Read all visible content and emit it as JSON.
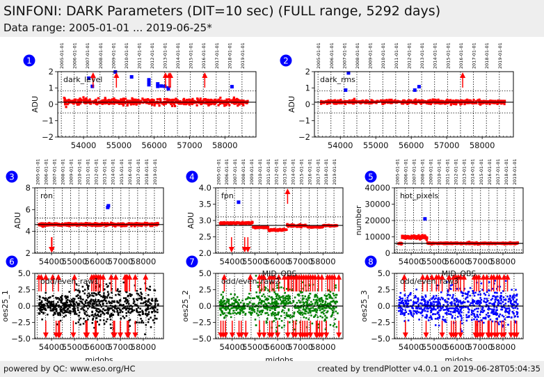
{
  "header": {
    "title": "SINFONI: DARK Parameters (DIT=10 sec) (FULL range, 5292 days)",
    "subtitle": "Data range: 2005-01-01 ... 2019-06-25*"
  },
  "footer": {
    "left": "powered by QC: www.eso.org/HC",
    "right": "created by trendPlotter v4.0.1 on 2019-06-28T05:04:35"
  },
  "colors": {
    "badge": "#0000ff",
    "red": "#ff0000",
    "blue": "#0000ff",
    "black": "#000000",
    "green": "#008000",
    "header_bg": "#eeeeee"
  },
  "chart_data": [
    {
      "id": 1,
      "type": "scatter",
      "badge": "1",
      "label": "dark_level",
      "ylabel": "ADU",
      "xlabel": "",
      "ylim": [
        -2,
        2
      ],
      "yticks": [
        "2",
        "1",
        "0",
        "−1",
        "−2"
      ],
      "ytick_values": [
        2,
        1,
        0,
        -1,
        -2
      ],
      "xlim": [
        53270,
        58880
      ],
      "xticks": [
        "54000",
        "55000",
        "56000",
        "57000",
        "58000"
      ],
      "xtick_values": [
        54000,
        55000,
        56000,
        57000,
        58000
      ],
      "date_labels": [
        "2005-01-01",
        "2006-01-01",
        "2007-01-01",
        "2008-01-01",
        "2009-01-01",
        "2010-01-01",
        "2011-01-01",
        "2012-01-01",
        "2013-01-01",
        "2014-01-01",
        "2015-01-01",
        "2016-01-01",
        "2017-01-01",
        "2018-01-01",
        "2019-01-01"
      ],
      "median": 0.13,
      "thresholds": [
        0.82,
        -0.52
      ],
      "point_color": "red",
      "band": {
        "center": 0.15,
        "spread": 0.15
      },
      "outliers_blue": [
        [
          54250,
          1.1
        ],
        [
          54150,
          1.6
        ],
        [
          54900,
          1.98
        ],
        [
          55360,
          1.68
        ],
        [
          55850,
          1.5
        ],
        [
          55850,
          1.35
        ],
        [
          55850,
          1.2
        ],
        [
          56100,
          1.25
        ],
        [
          56100,
          1.1
        ],
        [
          56200,
          1.12
        ],
        [
          56300,
          1.1
        ],
        [
          56400,
          1.0
        ],
        [
          56400,
          0.95
        ],
        [
          58200,
          1.08
        ]
      ],
      "arrows_up": [
        54270,
        54930,
        56320,
        56420,
        56460,
        57430
      ]
    },
    {
      "id": 2,
      "type": "scatter",
      "badge": "2",
      "label": "dark_rms",
      "ylabel": "ADU",
      "xlabel": "",
      "ylim": [
        -2,
        2
      ],
      "yticks": [
        "2",
        "1",
        "0",
        "−1",
        "−2"
      ],
      "ytick_values": [
        2,
        1,
        0,
        -1,
        -2
      ],
      "xlim": [
        53270,
        58880
      ],
      "xticks": [
        "54000",
        "55000",
        "56000",
        "57000",
        "58000"
      ],
      "xtick_values": [
        54000,
        55000,
        56000,
        57000,
        58000
      ],
      "date_labels": [
        "2005-01-01",
        "2006-01-01",
        "2007-01-01",
        "2008-01-01",
        "2009-01-01",
        "2010-01-01",
        "2011-01-01",
        "2012-01-01",
        "2013-01-01",
        "2014-01-01",
        "2015-01-01",
        "2016-01-01",
        "2017-01-01",
        "2018-01-01",
        "2019-01-01"
      ],
      "median": 0.13,
      "thresholds": [
        0.82,
        -0.52
      ],
      "point_color": "red",
      "band": {
        "center": 0.14,
        "spread": 0.1
      },
      "outliers_blue": [
        [
          54150,
          0.87
        ],
        [
          54230,
          1.92
        ],
        [
          56100,
          0.87
        ],
        [
          56220,
          1.08
        ]
      ],
      "arrows_up": [
        57450
      ]
    },
    {
      "id": 3,
      "type": "scatter",
      "badge": "3",
      "label": "ron",
      "ylabel": "ADU",
      "xlabel": "",
      "ylim": [
        2,
        8
      ],
      "yticks": [
        "8",
        "6",
        "4",
        "2"
      ],
      "ytick_values": [
        8,
        6,
        4,
        2
      ],
      "xlim": [
        53270,
        58880
      ],
      "xticks": [
        "54000",
        "55000",
        "56000",
        "57000",
        "58000"
      ],
      "xtick_values": [
        54000,
        55000,
        56000,
        57000,
        58000
      ],
      "date_labels": [
        "2005-01-01",
        "2006-01-01",
        "2007-01-01",
        "2008-01-01",
        "2009-01-01",
        "2010-01-01",
        "2011-01-01",
        "2012-01-01",
        "2013-01-01",
        "2014-01-01",
        "2015-01-01",
        "2016-01-01",
        "2017-01-01",
        "2018-01-01",
        "2019-01-01"
      ],
      "median": 4.63,
      "thresholds": [
        5.22,
        4.0
      ],
      "point_color": "red",
      "band": {
        "center": 4.63,
        "spread": 0.1
      },
      "outliers_blue": [
        [
          56450,
          6.2
        ],
        [
          56480,
          6.35
        ]
      ],
      "arrows_down": [
        54000,
        54020
      ]
    },
    {
      "id": 4,
      "type": "scatter",
      "badge": "4",
      "label": "fpn",
      "ylabel": "ADU",
      "xlabel": "",
      "ylim": [
        2.0,
        4.0
      ],
      "yticks": [
        "4.0",
        "3.5",
        "3.0",
        "2.5",
        "2.0"
      ],
      "ytick_values": [
        4.0,
        3.5,
        3.0,
        2.5,
        2.0
      ],
      "xlim": [
        53270,
        58880
      ],
      "xticks": [
        "54000",
        "55000",
        "56000",
        "57000",
        "58000"
      ],
      "xtick_values": [
        54000,
        55000,
        56000,
        57000,
        58000
      ],
      "date_labels": [
        "2005-01-01",
        "2006-01-01",
        "2007-01-01",
        "2008-01-01",
        "2009-01-01",
        "2010-01-01",
        "2011-01-01",
        "2012-01-01",
        "2013-01-01",
        "2014-01-01",
        "2015-01-01",
        "2016-01-01",
        "2017-01-01",
        "2018-01-01",
        "2019-01-01"
      ],
      "median": 2.85,
      "thresholds": [
        3.11
      ],
      "point_color": "red",
      "band": {
        "center": 2.85,
        "spread": 0.03
      },
      "outliers_blue": [
        [
          54280,
          3.56
        ]
      ],
      "arrows_up": [
        56440
      ],
      "arrows_down": [
        53970,
        54550,
        54690
      ]
    },
    {
      "id": 5,
      "type": "scatter",
      "badge": "5",
      "label": "hot_pixels",
      "ylabel": "number",
      "xlabel": "",
      "ylim": [
        0,
        40000
      ],
      "yticks": [
        "40000",
        "30000",
        "20000",
        "10000",
        "0"
      ],
      "ytick_values": [
        40000,
        30000,
        20000,
        10000,
        0
      ],
      "xlim": [
        53270,
        58880
      ],
      "xticks": [
        "54000",
        "55000",
        "56000",
        "57000",
        "58000"
      ],
      "xtick_values": [
        54000,
        55000,
        56000,
        57000,
        58000
      ],
      "date_labels": [
        "2005-01-01",
        "2006-01-01",
        "2007-01-01",
        "2008-01-01",
        "2009-01-01",
        "2010-01-01",
        "2011-01-01",
        "2012-01-01",
        "2013-01-01",
        "2014-01-01",
        "2015-01-01",
        "2016-01-01",
        "2017-01-01",
        "2018-01-01",
        "2019-01-01"
      ],
      "median": 6000,
      "thresholds": [
        20000,
        2000
      ],
      "point_color": "red",
      "band": {
        "center": 6000,
        "spread": 400
      },
      "outliers_blue": [
        [
          54600,
          21000
        ]
      ],
      "arrows_up": []
    },
    {
      "id": 6,
      "type": "scatter",
      "badge": "6",
      "label": "odd/even_raw1",
      "ylabel": "oes25_1",
      "xlabel": "mjdobs",
      "ylim": [
        -5.0,
        5.0
      ],
      "yticks": [
        "5.0",
        "2.5",
        "0.0",
        "−2.5",
        "−5.0"
      ],
      "ytick_values": [
        5,
        2.5,
        0,
        -2.5,
        -5
      ],
      "xlim": [
        53270,
        58880
      ],
      "xticks": [
        "54000",
        "55000",
        "56000",
        "57000",
        "58000"
      ],
      "xtick_values": [
        54000,
        55000,
        56000,
        57000,
        58000
      ],
      "median": 0,
      "thresholds": [],
      "point_color": "black",
      "band": {
        "center": 0,
        "spread": 1.3
      },
      "arrows_up": [
        53450,
        53550,
        53750,
        54050,
        54300,
        55000,
        55750,
        55830,
        55900,
        55970,
        56050,
        56130,
        56250,
        56600,
        56800,
        57200,
        57250,
        57300,
        57400,
        57650,
        58100
      ],
      "arrows_down": [
        53750,
        54200,
        54300,
        54350,
        54950,
        55500,
        55550,
        55900,
        55950,
        56700,
        56750,
        57000,
        57300,
        57350,
        57650
      ]
    },
    {
      "id": 7,
      "type": "scatter",
      "badge": "7",
      "label": "odd/even_raw2",
      "ylabel": "oes25_2",
      "xlabel": "mjdobs",
      "overlay_label": "MID_OBS",
      "ylim": [
        -5.0,
        5.0
      ],
      "yticks": [
        "5.0",
        "2.5",
        "0.0",
        "−2.5",
        "−5.0"
      ],
      "ytick_values": [
        5,
        2.5,
        0,
        -2.5,
        -5
      ],
      "xlim": [
        53270,
        58880
      ],
      "xticks": [
        "54000",
        "55000",
        "56000",
        "57000",
        "58000"
      ],
      "xtick_values": [
        54000,
        55000,
        56000,
        57000,
        58000
      ],
      "median": 0,
      "thresholds": [],
      "point_color": "green",
      "band": {
        "center": 0,
        "spread": 1.4
      },
      "arrows_up": [
        53650,
        54800,
        55200,
        55300,
        55400,
        55650,
        55750,
        55850,
        56050,
        56300,
        56450,
        56500,
        56600,
        56700,
        56800,
        56850,
        56950,
        57050,
        57150,
        57250,
        57350,
        57450,
        57550,
        57650,
        57800,
        57950,
        58200,
        58300,
        58400,
        58500,
        58700
      ],
      "arrows_down": [
        53500,
        53600,
        53700,
        54000,
        54300,
        54400,
        54600,
        55200,
        55400,
        55650,
        55750,
        56000,
        56450,
        56700,
        56800,
        57000,
        57100,
        57200,
        57300,
        57450,
        57700,
        57750,
        57850,
        57950,
        58150,
        58700
      ]
    },
    {
      "id": 8,
      "type": "scatter",
      "badge": "8",
      "label": "odd/even_raw3",
      "ylabel": "oes25_3",
      "xlabel": "mjdobs",
      "overlay_label": "MID_OBS",
      "ylim": [
        -5.0,
        5.0
      ],
      "yticks": [
        "5.0",
        "2.5",
        "0.0",
        "−2.5",
        "−5.0"
      ],
      "ytick_values": [
        5,
        2.5,
        0,
        -2.5,
        -5
      ],
      "xlim": [
        53270,
        58880
      ],
      "xticks": [
        "54000",
        "55000",
        "56000",
        "57000",
        "58000"
      ],
      "xtick_values": [
        54000,
        55000,
        56000,
        57000,
        58000
      ],
      "median": 0,
      "thresholds": [],
      "point_color": "blue",
      "band": {
        "center": 0,
        "spread": 1.4
      },
      "arrows_up": [
        53700,
        54500,
        54700,
        54900,
        55100,
        55200,
        55350,
        55650,
        55850,
        55950,
        56050,
        56150,
        56300,
        56750,
        56850,
        56950,
        57150,
        57300,
        57500,
        57600,
        57750,
        57850,
        58050,
        58200
      ],
      "arrows_down": [
        53750,
        54650,
        55350,
        55750,
        55850,
        55950,
        56150,
        56800,
        56850,
        56900,
        57000,
        57100,
        57350,
        57400,
        57500,
        57650,
        57750,
        57950,
        58050,
        58350,
        58500,
        58600
      ]
    }
  ]
}
